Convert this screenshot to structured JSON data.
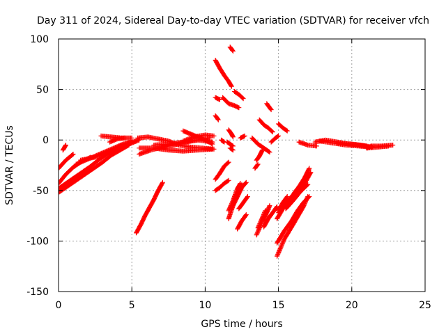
{
  "chart_data": {
    "type": "scatter",
    "title": "Day 311 of 2024, Sidereal Day-to-day VTEC variation (SDTVAR) for receiver vfch",
    "xlabel": "GPS time / hours",
    "ylabel": "SDTVAR / TECUs",
    "xlim": [
      0,
      25
    ],
    "ylim": [
      -150,
      100
    ],
    "xticks": [
      0,
      5,
      10,
      15,
      20,
      25
    ],
    "yticks": [
      -150,
      -100,
      -50,
      0,
      50,
      100
    ],
    "xtick_labels": [
      "0",
      "5",
      "10",
      "15",
      "20",
      "25"
    ],
    "ytick_labels": [
      "-150",
      "-100",
      "-50",
      "0",
      "50",
      "100"
    ],
    "grid": true,
    "marker": "plus",
    "series": [
      {
        "name": "SDTVAR",
        "color": "#ff0000",
        "tracks": [
          [
            [
              0.0,
              -52
            ],
            [
              0.6,
              -46
            ],
            [
              1.2,
              -40
            ],
            [
              1.8,
              -34
            ],
            [
              2.4,
              -28
            ],
            [
              3.0,
              -22
            ],
            [
              3.6,
              -15
            ],
            [
              4.2,
              -10
            ],
            [
              4.8,
              -5
            ]
          ],
          [
            [
              0.0,
              -48
            ],
            [
              0.7,
              -41
            ],
            [
              1.4,
              -34
            ],
            [
              2.1,
              -27
            ],
            [
              2.8,
              -19
            ],
            [
              3.5,
              -12
            ],
            [
              4.2,
              -6
            ],
            [
              5.0,
              -2
            ]
          ],
          [
            [
              0.0,
              -43
            ],
            [
              0.5,
              -34
            ],
            [
              1.0,
              -27
            ],
            [
              1.6,
              -21
            ],
            [
              2.2,
              -17
            ]
          ],
          [
            [
              0.0,
              -28
            ],
            [
              0.5,
              -20
            ],
            [
              1.0,
              -14
            ]
          ],
          [
            [
              0.3,
              -10
            ],
            [
              0.5,
              -5
            ]
          ],
          [
            [
              1.2,
              -24
            ],
            [
              2.0,
              -19
            ],
            [
              2.8,
              -14
            ],
            [
              3.6,
              -9
            ],
            [
              4.4,
              -4
            ],
            [
              5.3,
              -1
            ]
          ],
          [
            [
              1.5,
              -20
            ],
            [
              2.5,
              -17
            ],
            [
              3.5,
              -12
            ],
            [
              4.5,
              -6
            ],
            [
              5.5,
              0
            ]
          ],
          [
            [
              2.9,
              4
            ],
            [
              3.6,
              3
            ],
            [
              4.3,
              2
            ],
            [
              5.0,
              2
            ]
          ],
          [
            [
              3.5,
              -2
            ],
            [
              4.0,
              1
            ],
            [
              4.5,
              2
            ]
          ],
          [
            [
              5.4,
              2
            ],
            [
              6.1,
              3
            ],
            [
              6.8,
              1
            ],
            [
              7.5,
              -1
            ],
            [
              8.2,
              -5
            ],
            [
              9.0,
              -7
            ],
            [
              9.8,
              -8
            ],
            [
              10.6,
              -9
            ]
          ],
          [
            [
              5.5,
              -14
            ],
            [
              6.3,
              -10
            ],
            [
              7.1,
              -7
            ],
            [
              7.9,
              -5
            ],
            [
              8.7,
              -2
            ],
            [
              9.5,
              0
            ],
            [
              10.3,
              2
            ]
          ],
          [
            [
              5.5,
              -8
            ],
            [
              6.5,
              -8
            ],
            [
              7.5,
              -10
            ],
            [
              8.5,
              -11
            ],
            [
              9.5,
              -10
            ],
            [
              10.5,
              -9
            ]
          ],
          [
            [
              6.5,
              -5
            ],
            [
              7.5,
              -4
            ],
            [
              8.5,
              -2
            ],
            [
              9.5,
              0
            ],
            [
              10.5,
              -2
            ]
          ],
          [
            [
              8.5,
              9
            ],
            [
              9.0,
              6
            ],
            [
              9.5,
              3
            ],
            [
              10.0,
              0
            ],
            [
              10.5,
              -4
            ]
          ],
          [
            [
              8.5,
              -1
            ],
            [
              9.2,
              3
            ],
            [
              10.0,
              5
            ],
            [
              10.6,
              4
            ]
          ],
          [
            [
              5.3,
              -92
            ],
            [
              5.6,
              -84
            ],
            [
              5.9,
              -75
            ],
            [
              6.2,
              -67
            ],
            [
              6.5,
              -59
            ],
            [
              6.8,
              -50
            ],
            [
              7.1,
              -42
            ]
          ],
          [
            [
              10.7,
              79
            ],
            [
              11.0,
              71
            ],
            [
              11.3,
              64
            ],
            [
              11.6,
              58
            ],
            [
              11.8,
              53
            ]
          ],
          [
            [
              11.7,
              92
            ],
            [
              11.9,
              88
            ]
          ],
          [
            [
              10.7,
              42
            ],
            [
              11.0,
              40
            ]
          ],
          [
            [
              11.2,
              42
            ],
            [
              11.6,
              36
            ],
            [
              12.0,
              34
            ],
            [
              12.3,
              32
            ]
          ],
          [
            [
              12.0,
              48
            ],
            [
              12.3,
              45
            ],
            [
              12.6,
              41
            ]
          ],
          [
            [
              10.7,
              24
            ],
            [
              10.9,
              20
            ]
          ],
          [
            [
              11.6,
              10
            ],
            [
              11.8,
              6
            ],
            [
              11.9,
              3
            ]
          ],
          [
            [
              11.1,
              0
            ],
            [
              11.3,
              -2
            ]
          ],
          [
            [
              11.7,
              -8
            ],
            [
              11.9,
              -10
            ]
          ],
          [
            [
              11.5,
              -2
            ],
            [
              11.7,
              -4
            ],
            [
              11.9,
              -6
            ]
          ],
          [
            [
              12.4,
              2
            ],
            [
              12.7,
              4
            ]
          ],
          [
            [
              13.7,
              20
            ],
            [
              14.0,
              15
            ],
            [
              14.3,
              12
            ],
            [
              14.6,
              8
            ]
          ],
          [
            [
              14.2,
              36
            ],
            [
              14.5,
              30
            ]
          ],
          [
            [
              15.0,
              16
            ],
            [
              15.3,
              12
            ],
            [
              15.6,
              9
            ]
          ],
          [
            [
              13.2,
              2
            ],
            [
              13.6,
              -4
            ],
            [
              14.0,
              -8
            ],
            [
              14.4,
              -12
            ]
          ],
          [
            [
              13.9,
              -10
            ],
            [
              13.7,
              -16
            ],
            [
              13.5,
              -20
            ]
          ],
          [
            [
              13.6,
              -24
            ],
            [
              13.4,
              -28
            ]
          ],
          [
            [
              14.5,
              -2
            ],
            [
              14.8,
              2
            ],
            [
              15.0,
              4
            ]
          ],
          [
            [
              10.7,
              -39
            ],
            [
              11.0,
              -33
            ],
            [
              11.3,
              -26
            ],
            [
              11.6,
              -22
            ]
          ],
          [
            [
              10.7,
              -50
            ],
            [
              11.0,
              -47
            ],
            [
              11.3,
              -43
            ],
            [
              11.6,
              -40
            ]
          ],
          [
            [
              11.6,
              -78
            ],
            [
              11.9,
              -65
            ],
            [
              12.2,
              -56
            ],
            [
              12.5,
              -47
            ],
            [
              12.8,
              -42
            ]
          ],
          [
            [
              11.6,
              -70
            ],
            [
              11.9,
              -60
            ],
            [
              12.2,
              -48
            ],
            [
              12.4,
              -43
            ]
          ],
          [
            [
              11.9,
              -62
            ],
            [
              12.2,
              -53
            ],
            [
              12.5,
              -44
            ]
          ],
          [
            [
              12.2,
              -88
            ],
            [
              12.5,
              -80
            ],
            [
              12.8,
              -74
            ]
          ],
          [
            [
              12.3,
              -68
            ],
            [
              12.6,
              -62
            ],
            [
              12.9,
              -56
            ]
          ],
          [
            [
              13.5,
              -94
            ],
            [
              13.8,
              -84
            ],
            [
              14.0,
              -76
            ],
            [
              14.3,
              -69
            ]
          ],
          [
            [
              13.6,
              -87
            ],
            [
              13.9,
              -77
            ],
            [
              14.1,
              -70
            ]
          ],
          [
            [
              14.0,
              -86
            ],
            [
              14.3,
              -78
            ],
            [
              14.6,
              -72
            ],
            [
              14.9,
              -66
            ]
          ],
          [
            [
              14.0,
              -80
            ],
            [
              14.2,
              -72
            ],
            [
              14.4,
              -65
            ]
          ],
          [
            [
              14.9,
              -115
            ],
            [
              15.4,
              -98
            ],
            [
              15.9,
              -86
            ],
            [
              16.3,
              -76
            ],
            [
              16.7,
              -66
            ],
            [
              17.0,
              -56
            ]
          ],
          [
            [
              14.9,
              -102
            ],
            [
              15.4,
              -90
            ],
            [
              15.9,
              -80
            ],
            [
              16.3,
              -70
            ],
            [
              16.7,
              -62
            ],
            [
              17.1,
              -56
            ]
          ],
          [
            [
              14.9,
              -78
            ],
            [
              15.3,
              -68
            ],
            [
              15.7,
              -60
            ],
            [
              16.1,
              -52
            ],
            [
              16.5,
              -44
            ],
            [
              16.8,
              -37
            ],
            [
              17.1,
              -28
            ]
          ],
          [
            [
              15.0,
              -72
            ],
            [
              15.5,
              -64
            ],
            [
              16.0,
              -56
            ],
            [
              16.5,
              -48
            ],
            [
              16.9,
              -40
            ],
            [
              17.2,
              -32
            ]
          ],
          [
            [
              15.5,
              -68
            ],
            [
              16.0,
              -60
            ],
            [
              16.5,
              -51
            ],
            [
              17.0,
              -44
            ]
          ],
          [
            [
              15.0,
              -70
            ],
            [
              15.3,
              -62
            ],
            [
              15.6,
              -56
            ]
          ],
          [
            [
              16.4,
              -2
            ],
            [
              17.0,
              -5
            ],
            [
              17.6,
              -6
            ]
          ],
          [
            [
              17.5,
              -2
            ],
            [
              18.2,
              0
            ],
            [
              19.0,
              -2
            ],
            [
              19.8,
              -4
            ],
            [
              20.6,
              -5
            ],
            [
              21.4,
              -7
            ]
          ],
          [
            [
              17.8,
              -1
            ],
            [
              18.7,
              -3
            ],
            [
              19.6,
              -5
            ],
            [
              20.5,
              -6
            ],
            [
              21.2,
              -7
            ]
          ],
          [
            [
              19.0,
              -3
            ],
            [
              20.0,
              -4
            ],
            [
              21.0,
              -6
            ]
          ],
          [
            [
              21.3,
              -6
            ],
            [
              22.0,
              -6
            ],
            [
              22.8,
              -5
            ]
          ],
          [
            [
              21.0,
              -8
            ],
            [
              21.8,
              -7
            ],
            [
              22.5,
              -6
            ]
          ]
        ]
      }
    ]
  }
}
